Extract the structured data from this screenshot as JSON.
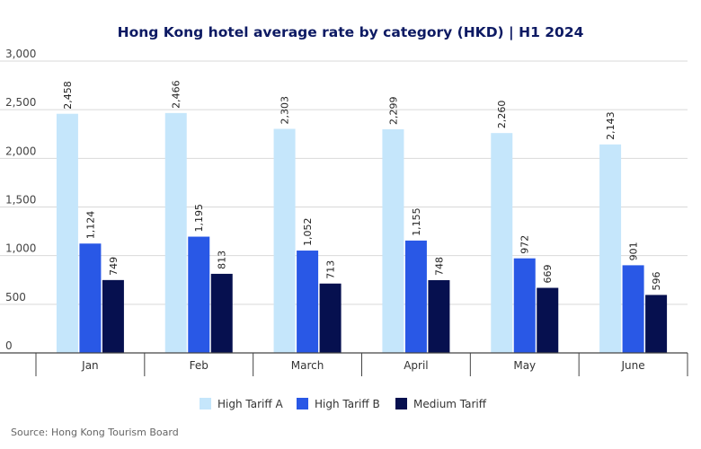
{
  "chart_data": {
    "type": "bar",
    "title": "Hong Kong hotel average rate by category (HKD) | H1 2024",
    "xlabel": "",
    "ylabel": "",
    "ylim": [
      0,
      3000
    ],
    "yticks": [
      0,
      500,
      1000,
      1500,
      2000,
      2500,
      3000
    ],
    "ytick_labels": [
      "0",
      "500",
      "1,000",
      "1,500",
      "2,000",
      "2,500",
      "3,000"
    ],
    "categories": [
      "Jan",
      "Feb",
      "March",
      "April",
      "May",
      "June"
    ],
    "series": [
      {
        "name": "High Tariff A",
        "color": "#c5e6fb",
        "values": [
          2458,
          2466,
          2303,
          2299,
          2260,
          2143
        ],
        "labels": [
          "2,458",
          "2,466",
          "2,303",
          "2,299",
          "2,260",
          "2,143"
        ]
      },
      {
        "name": "High Tariff B",
        "color": "#2958e6",
        "values": [
          1124,
          1195,
          1052,
          1155,
          972,
          901
        ],
        "labels": [
          "1,124",
          "1,195",
          "1,052",
          "1,155",
          "972",
          "901"
        ]
      },
      {
        "name": "Medium Tariff",
        "color": "#06104f",
        "values": [
          749,
          813,
          713,
          748,
          669,
          596
        ],
        "labels": [
          "749",
          "813",
          "713",
          "748",
          "669",
          "596"
        ]
      }
    ],
    "grid": true,
    "legend_position": "bottom-center",
    "source": "Source: Hong Kong Tourism Board"
  }
}
